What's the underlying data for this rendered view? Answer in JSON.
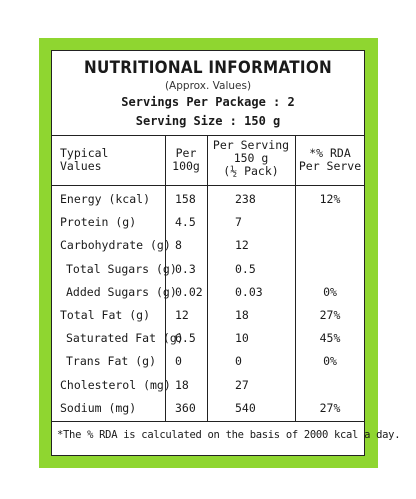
{
  "header": {
    "title": "NUTRITIONAL INFORMATION",
    "subtitle": "(Approx. Values)",
    "servings_per_package": "Servings Per Package : 2",
    "serving_size": "Serving Size : 150 g"
  },
  "table": {
    "columns": [
      "Typical\nValues",
      "Per\n100g",
      "Per Serving\n150 g\n(½ Pack)",
      "*% RDA\nPer Serve"
    ],
    "rows": [
      {
        "label": "Energy (kcal)",
        "per100": "158",
        "perServing": "238",
        "rda": "12%",
        "indent": false
      },
      {
        "label": "Protein (g)",
        "per100": "4.5",
        "perServing": "7",
        "rda": "",
        "indent": false
      },
      {
        "label": "Carbohydrate (g)",
        "per100": "8",
        "perServing": "12",
        "rda": "",
        "indent": false
      },
      {
        "label": "Total Sugars (g)",
        "per100": "0.3",
        "perServing": "0.5",
        "rda": "",
        "indent": true
      },
      {
        "label": "Added Sugars (g)",
        "per100": "0.02",
        "perServing": "0.03",
        "rda": "0%",
        "indent": true
      },
      {
        "label": "Total Fat (g)",
        "per100": "12",
        "perServing": "18",
        "rda": "27%",
        "indent": false
      },
      {
        "label": "Saturated Fat (g)",
        "per100": "6.5",
        "perServing": "10",
        "rda": "45%",
        "indent": true
      },
      {
        "label": "Trans Fat (g)",
        "per100": "0",
        "perServing": "0",
        "rda": "0%",
        "indent": true
      },
      {
        "label": "Cholesterol (mg)",
        "per100": "18",
        "perServing": "27",
        "rda": "",
        "indent": false
      },
      {
        "label": "Sodium (mg)",
        "per100": "360",
        "perServing": "540",
        "rda": "27%",
        "indent": false
      }
    ]
  },
  "footnote": "*The % RDA is calculated on the basis of 2000 kcal a day.",
  "colors": {
    "border_green": "#8fd630",
    "text": "#1a1a1a",
    "background": "#ffffff"
  }
}
